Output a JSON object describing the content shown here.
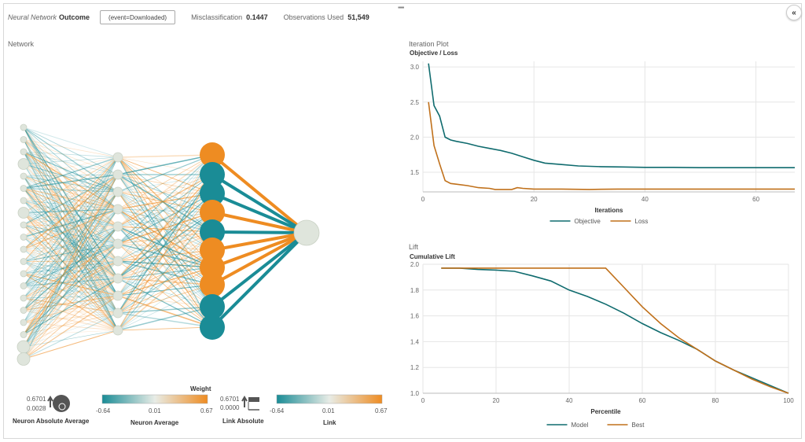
{
  "header": {
    "model_type": "Neural Network",
    "target": "Outcome",
    "event_button": "(event=Downloaded)",
    "misclass_label": "Misclassification",
    "misclass_value": "0.1447",
    "obs_label": "Observations Used",
    "obs_value": "51,549"
  },
  "colors": {
    "teal": "#1a8c96",
    "orange": "#ee8c22",
    "objective": "#0f6b6e",
    "loss": "#c0701a",
    "neutral": "#dfe5dc"
  },
  "network": {
    "label": "Network",
    "legend": {
      "weight_title": "Weight",
      "neuron_abs_max": "0.6701",
      "neuron_abs_min": "0.0028",
      "neuron_abs_title": "Neuron Absolute Average",
      "neuron_avg_min": "-0.64",
      "neuron_avg_mid": "0.01",
      "neuron_avg_max": "0.67",
      "neuron_avg_title": "Neuron Average",
      "link_abs_max": "0.6701",
      "link_abs_min": "0.0000",
      "link_abs_title": "Link Absolute",
      "link_min": "-0.64",
      "link_mid": "0.01",
      "link_max": "0.67",
      "link_title": "Link"
    }
  },
  "iteration_plot": {
    "label": "Iteration Plot",
    "chart_data": {
      "type": "line",
      "title": "Objective / Loss",
      "xlabel": "Iterations",
      "ylabel": "Objective / Loss",
      "xlim": [
        0,
        67
      ],
      "ylim": [
        1.22,
        3.08
      ],
      "xticks": [
        0,
        20,
        40,
        60
      ],
      "yticks": [
        1.5,
        2.0,
        2.5,
        3.0
      ],
      "xtick_labels": [
        "0",
        "20",
        "40",
        "60"
      ],
      "ytick_labels": [
        "1.5",
        "2.0",
        "2.5",
        "3.0"
      ],
      "series": [
        {
          "name": "Objective",
          "x": [
            1,
            2,
            3,
            4,
            5,
            6,
            8,
            10,
            12,
            14,
            16,
            18,
            20,
            22,
            25,
            28,
            32,
            36,
            40,
            45,
            50,
            55,
            60,
            67
          ],
          "values": [
            3.05,
            2.45,
            2.3,
            2.0,
            1.96,
            1.94,
            1.91,
            1.87,
            1.84,
            1.81,
            1.77,
            1.72,
            1.67,
            1.63,
            1.61,
            1.59,
            1.58,
            1.575,
            1.57,
            1.57,
            1.565,
            1.565,
            1.565,
            1.565
          ]
        },
        {
          "name": "Loss",
          "x": [
            1,
            2,
            3,
            4,
            5,
            6,
            8,
            10,
            12,
            13,
            14,
            16,
            17,
            18,
            20,
            25,
            30,
            35,
            40,
            50,
            60,
            67
          ],
          "values": [
            2.5,
            1.88,
            1.62,
            1.38,
            1.34,
            1.33,
            1.31,
            1.28,
            1.27,
            1.255,
            1.255,
            1.255,
            1.28,
            1.27,
            1.26,
            1.26,
            1.255,
            1.26,
            1.26,
            1.26,
            1.26,
            1.26
          ]
        }
      ]
    }
  },
  "lift_plot": {
    "label": "Lift",
    "chart_data": {
      "type": "line",
      "title": "Cumulative Lift",
      "xlabel": "Percentile",
      "ylabel": "Cumulative Lift",
      "xlim": [
        0,
        100
      ],
      "ylim": [
        1.0,
        2.0
      ],
      "xticks": [
        0,
        20,
        40,
        60,
        80,
        100
      ],
      "yticks": [
        1.0,
        1.2,
        1.4,
        1.6,
        1.8,
        2.0
      ],
      "xtick_labels": [
        "0",
        "20",
        "40",
        "60",
        "80",
        "100"
      ],
      "ytick_labels": [
        "1.0",
        "1.2",
        "1.4",
        "1.6",
        "1.8",
        "2.0"
      ],
      "series": [
        {
          "name": "Model",
          "x": [
            5,
            10,
            15,
            20,
            25,
            30,
            35,
            40,
            45,
            50,
            55,
            60,
            65,
            70,
            75,
            80,
            85,
            90,
            95,
            100
          ],
          "values": [
            1.97,
            1.97,
            1.96,
            1.955,
            1.945,
            1.91,
            1.87,
            1.8,
            1.75,
            1.69,
            1.62,
            1.54,
            1.47,
            1.41,
            1.34,
            1.25,
            1.18,
            1.12,
            1.06,
            1.0
          ]
        },
        {
          "name": "Best",
          "x": [
            5,
            10,
            20,
            30,
            40,
            45,
            50,
            55,
            60,
            65,
            70,
            75,
            80,
            85,
            90,
            95,
            100
          ],
          "values": [
            1.97,
            1.97,
            1.97,
            1.97,
            1.97,
            1.97,
            1.97,
            1.82,
            1.67,
            1.54,
            1.43,
            1.34,
            1.25,
            1.18,
            1.11,
            1.05,
            1.0
          ]
        }
      ]
    }
  }
}
